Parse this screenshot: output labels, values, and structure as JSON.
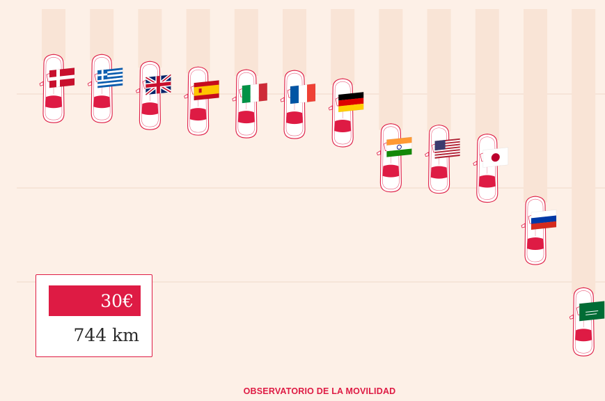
{
  "chart_data": {
    "type": "bar",
    "categories": [
      "Dinamarca",
      "Grecia",
      "Reino Unido",
      "España",
      "Italia",
      "Francia",
      "Alemania",
      "India",
      "Estados Unidos",
      "Japón",
      "Rusia",
      "Arabia Saudí"
    ],
    "flags": [
      "flag-denmark",
      "flag-greece",
      "flag-uk",
      "flag-spain",
      "flag-italy",
      "flag-france",
      "flag-germany",
      "flag-india",
      "flag-usa",
      "flag-japan",
      "flag-russia",
      "flag-saudi-arabia"
    ],
    "values": [
      135,
      135,
      145,
      153,
      157,
      158,
      170,
      235,
      237,
      250,
      340,
      472
    ],
    "unit": "km",
    "ylim": [
      0,
      520
    ],
    "grid": true,
    "legend_price": "30€",
    "legend_km": "744 km"
  },
  "colors": {
    "background": "#fdf0e7",
    "accent": "#de1b44",
    "track": "#f9e4d6",
    "grid": "#f0d8ca"
  },
  "footer": {
    "source": "OBSERVATORIO DE LA MOVILIDAD"
  }
}
